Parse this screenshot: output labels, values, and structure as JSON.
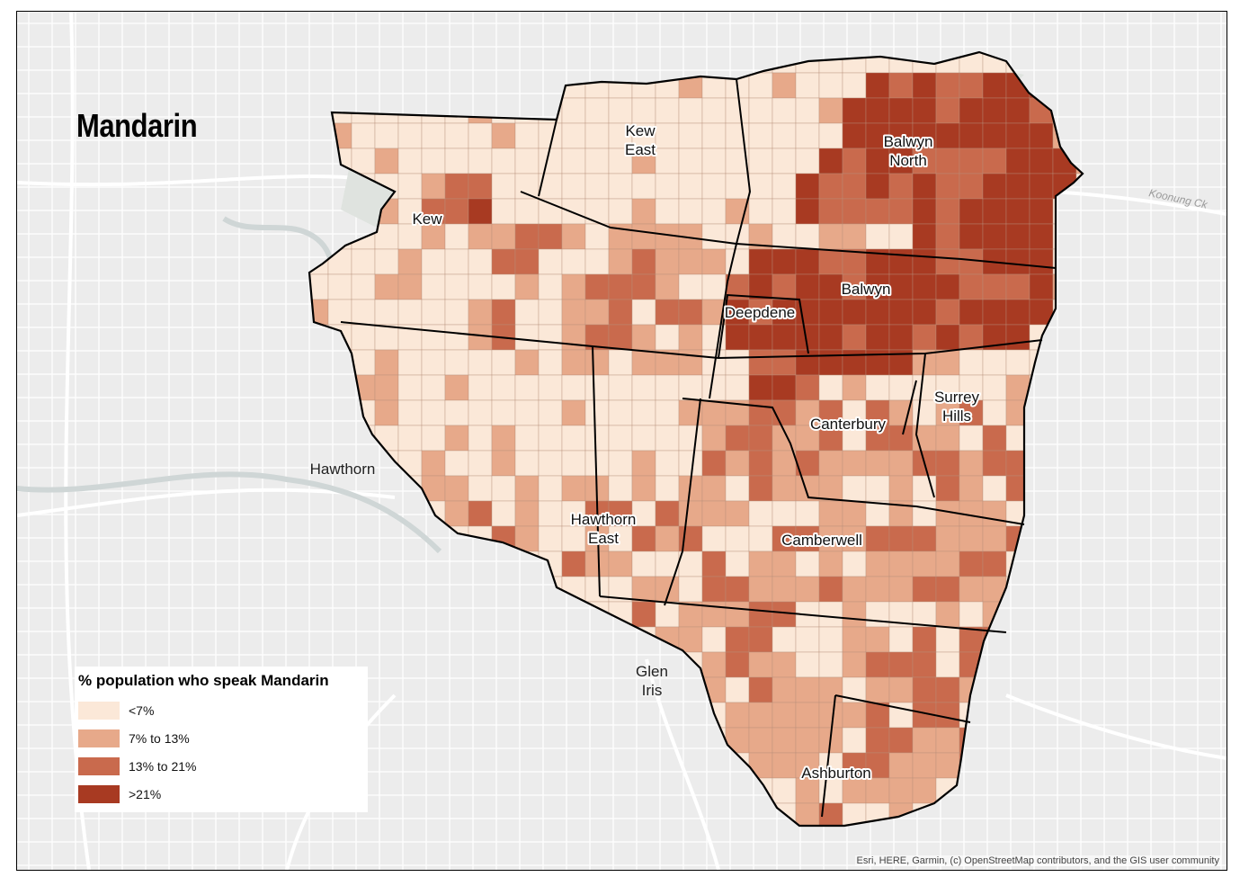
{
  "title": "Mandarin",
  "legend": {
    "title": "% population who speak Mandarin",
    "items": [
      {
        "label": "<7%",
        "color": "#fbe8d8"
      },
      {
        "label": "7% to 13%",
        "color": "#e7a98a"
      },
      {
        "label": "13% to 21%",
        "color": "#c96a4d"
      },
      {
        "label": ">21%",
        "color": "#a83a22"
      }
    ]
  },
  "suburbs": [
    {
      "name": "Kew",
      "lines": [
        "Kew"
      ],
      "class": 2
    },
    {
      "name": "Kew East",
      "lines": [
        "Kew",
        "East"
      ],
      "class": 0
    },
    {
      "name": "Balwyn North",
      "lines": [
        "Balwyn",
        "North"
      ],
      "class": 3
    },
    {
      "name": "Balwyn",
      "lines": [
        "Balwyn"
      ],
      "class": 3
    },
    {
      "name": "Deepdene",
      "lines": [
        "Deepdene"
      ],
      "class": 2
    },
    {
      "name": "Canterbury",
      "lines": [
        "Canterbury"
      ],
      "class": 1
    },
    {
      "name": "Surrey Hills",
      "lines": [
        "Surrey",
        "Hills"
      ],
      "class": 1
    },
    {
      "name": "Hawthorn East",
      "lines": [
        "Hawthorn",
        "East"
      ],
      "class": 1
    },
    {
      "name": "Camberwell",
      "lines": [
        "Camberwell"
      ],
      "class": 1
    },
    {
      "name": "Ashburton",
      "lines": [
        "Ashburton"
      ],
      "class": 1
    }
  ],
  "external_labels": [
    {
      "name": "Hawthorn",
      "lines": [
        "Hawthorn"
      ]
    },
    {
      "name": "Glen Iris",
      "lines": [
        "Glen",
        "Iris"
      ]
    }
  ],
  "road_labels": [
    "Koonung Ck"
  ],
  "attribution": "Esri, HERE, Garmin, (c) OpenStreetMap contributors, and the GIS user community"
}
